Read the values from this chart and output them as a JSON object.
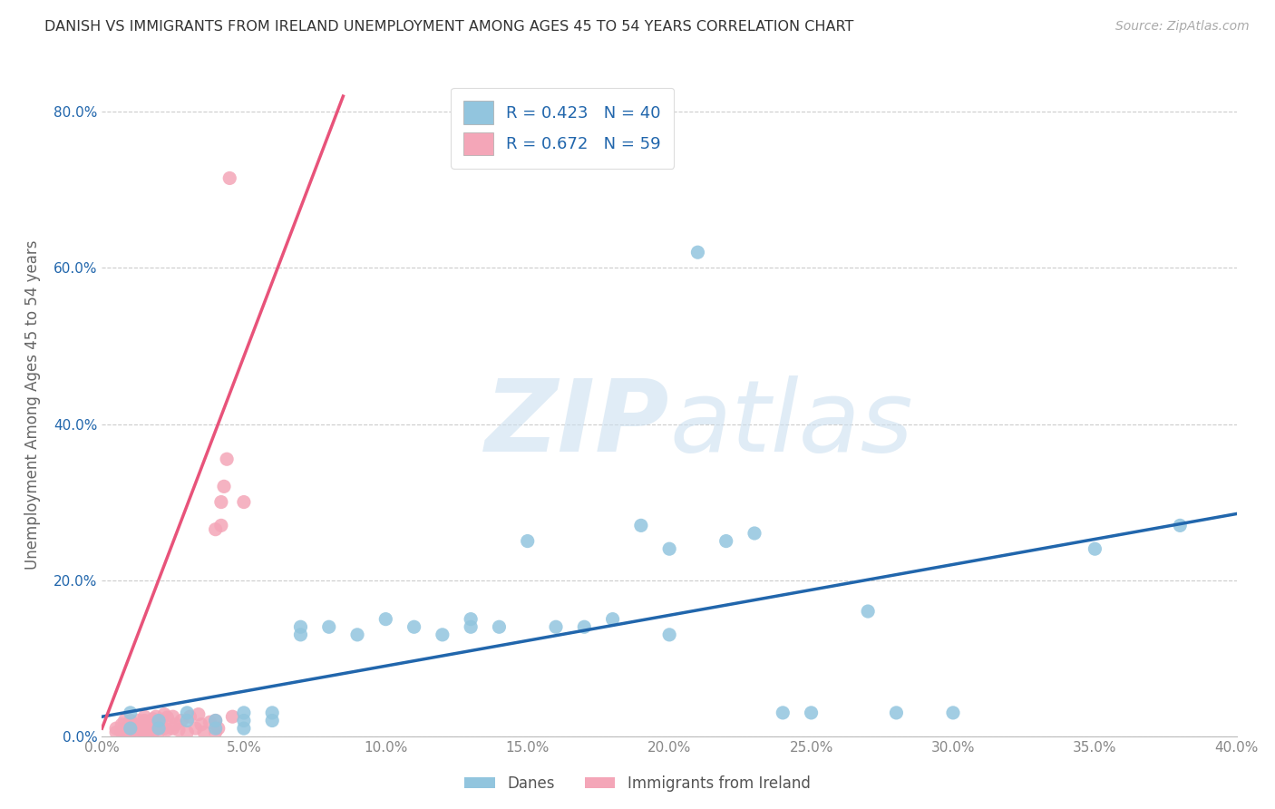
{
  "title": "DANISH VS IMMIGRANTS FROM IRELAND UNEMPLOYMENT AMONG AGES 45 TO 54 YEARS CORRELATION CHART",
  "source": "Source: ZipAtlas.com",
  "ylabel": "Unemployment Among Ages 45 to 54 years",
  "xlim": [
    0.0,
    0.4
  ],
  "ylim": [
    0.0,
    0.85
  ],
  "xticks": [
    0.0,
    0.05,
    0.1,
    0.15,
    0.2,
    0.25,
    0.3,
    0.35,
    0.4
  ],
  "yticks": [
    0.0,
    0.2,
    0.4,
    0.6,
    0.8
  ],
  "danes_color": "#92C5DE",
  "ireland_color": "#F4A6B8",
  "danes_line_color": "#2166AC",
  "ireland_line_color": "#E8537A",
  "danes_R": 0.423,
  "danes_N": 40,
  "ireland_R": 0.672,
  "ireland_N": 59,
  "legend_labels": [
    "Danes",
    "Immigrants from Ireland"
  ],
  "danes_x": [
    0.01,
    0.01,
    0.02,
    0.02,
    0.03,
    0.03,
    0.04,
    0.04,
    0.05,
    0.05,
    0.05,
    0.06,
    0.06,
    0.07,
    0.07,
    0.08,
    0.09,
    0.1,
    0.11,
    0.12,
    0.13,
    0.13,
    0.14,
    0.15,
    0.16,
    0.17,
    0.18,
    0.19,
    0.2,
    0.2,
    0.21,
    0.22,
    0.23,
    0.24,
    0.25,
    0.27,
    0.28,
    0.3,
    0.35,
    0.38
  ],
  "danes_y": [
    0.01,
    0.03,
    0.01,
    0.02,
    0.02,
    0.03,
    0.01,
    0.02,
    0.01,
    0.02,
    0.03,
    0.02,
    0.03,
    0.13,
    0.14,
    0.14,
    0.13,
    0.15,
    0.14,
    0.13,
    0.14,
    0.15,
    0.14,
    0.25,
    0.14,
    0.14,
    0.15,
    0.27,
    0.13,
    0.24,
    0.62,
    0.25,
    0.26,
    0.03,
    0.03,
    0.16,
    0.03,
    0.03,
    0.24,
    0.27
  ],
  "ireland_x": [
    0.005,
    0.005,
    0.007,
    0.007,
    0.008,
    0.008,
    0.008,
    0.01,
    0.01,
    0.01,
    0.01,
    0.012,
    0.012,
    0.013,
    0.013,
    0.015,
    0.015,
    0.015,
    0.015,
    0.015,
    0.016,
    0.016,
    0.017,
    0.017,
    0.017,
    0.018,
    0.018,
    0.019,
    0.019,
    0.02,
    0.02,
    0.021,
    0.022,
    0.022,
    0.023,
    0.023,
    0.025,
    0.025,
    0.026,
    0.027,
    0.028,
    0.03,
    0.031,
    0.033,
    0.034,
    0.035,
    0.036,
    0.038,
    0.04,
    0.04,
    0.04,
    0.041,
    0.042,
    0.042,
    0.043,
    0.044,
    0.045,
    0.046,
    0.05
  ],
  "ireland_y": [
    0.005,
    0.01,
    0.005,
    0.015,
    0.005,
    0.01,
    0.02,
    0.005,
    0.01,
    0.015,
    0.02,
    0.005,
    0.015,
    0.008,
    0.02,
    0.005,
    0.01,
    0.015,
    0.02,
    0.025,
    0.005,
    0.015,
    0.008,
    0.012,
    0.018,
    0.005,
    0.022,
    0.01,
    0.025,
    0.005,
    0.015,
    0.02,
    0.01,
    0.028,
    0.008,
    0.024,
    0.01,
    0.025,
    0.015,
    0.008,
    0.02,
    0.005,
    0.025,
    0.01,
    0.028,
    0.015,
    0.005,
    0.018,
    0.005,
    0.02,
    0.265,
    0.01,
    0.27,
    0.3,
    0.32,
    0.355,
    0.715,
    0.025,
    0.3
  ],
  "ireland_line_x": [
    0.0,
    0.085
  ],
  "ireland_line_y": [
    0.01,
    0.82
  ],
  "danes_line_x": [
    0.0,
    0.4
  ],
  "danes_line_y": [
    0.025,
    0.285
  ]
}
